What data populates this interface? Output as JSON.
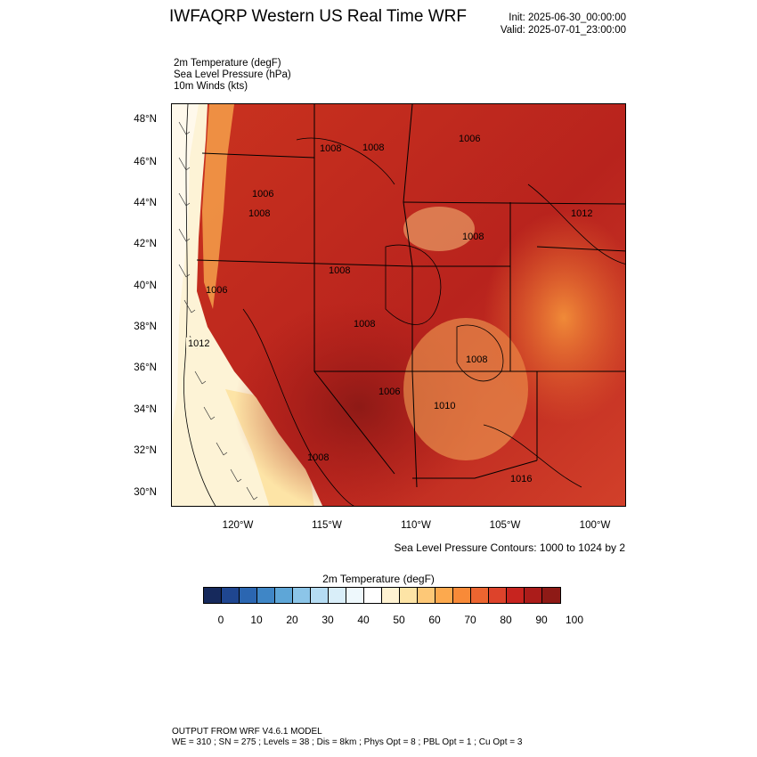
{
  "header": {
    "title": "IWFAQRP Western US Real Time WRF",
    "init": "Init: 2025-06-30_00:00:00",
    "valid": "Valid: 2025-07-01_23:00:00"
  },
  "fields": [
    "2m Temperature   (degF)",
    "Sea Level Pressure   (hPa)",
    "10m Winds   (kts)"
  ],
  "map": {
    "lat_labels": [
      "48°N",
      "46°N",
      "44°N",
      "42°N",
      "40°N",
      "38°N",
      "36°N",
      "34°N",
      "32°N",
      "30°N"
    ],
    "lon_labels": [
      "120°W",
      "115°W",
      "110°W",
      "105°W",
      "100°W"
    ],
    "pressure_labels": [
      "1012",
      "1008",
      "1008",
      "1006",
      "1012",
      "1006",
      "1008",
      "1008",
      "1008",
      "1008",
      "1006",
      "1010",
      "1008",
      "1016",
      "1006",
      "1008"
    ],
    "colors": {
      "ocean_cool": "#fdf0c8",
      "hot": "#c7241f",
      "very_hot": "#8e1a16"
    }
  },
  "contour_note": "Sea Level Pressure Contours: 1000 to 1024 by 2",
  "colorbar": {
    "title": "2m Temperature  (degF)",
    "tick_labels": [
      "0",
      "10",
      "20",
      "30",
      "40",
      "50",
      "60",
      "70",
      "80",
      "90",
      "100"
    ],
    "colors": [
      "#16295c",
      "#1f4690",
      "#2b66b1",
      "#3f86c6",
      "#5ea6d7",
      "#8cc5e8",
      "#b5dcf2",
      "#d9eef9",
      "#eef8fc",
      "#ffffff",
      "#fff2d2",
      "#fde4a6",
      "#fdc877",
      "#fca94e",
      "#f88a38",
      "#ec6530",
      "#dd432b",
      "#c7241f",
      "#ab1c1a",
      "#8e1a16"
    ]
  },
  "footer": {
    "line1": "OUTPUT FROM WRF V4.6.1 MODEL",
    "line2": "WE = 310 ; SN = 275 ; Levels = 38 ; Dis = 8km ; Phys Opt = 8 ; PBL Opt = 1 ; Cu Opt = 3"
  }
}
